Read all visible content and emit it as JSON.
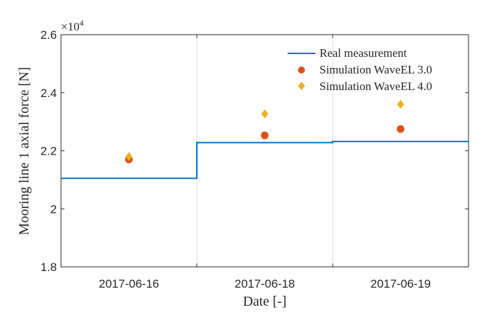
{
  "chart_data": {
    "type": "line",
    "title": "",
    "xlabel": "Date [-]",
    "ylabel": "Mooring line 1 axial force [N]",
    "y_exponent_label": "×10",
    "y_exponent_power": "4",
    "categories": [
      "2017-06-16",
      "2017-06-18",
      "2017-06-19"
    ],
    "ylim": [
      1.8,
      2.6
    ],
    "yticks": [
      1.8,
      2.0,
      2.2,
      2.4,
      2.6
    ],
    "ytick_labels": [
      "1.8",
      "2",
      "2.2",
      "2.4",
      "2.6"
    ],
    "grid": "vertical",
    "legend_position": "top-right",
    "series": [
      {
        "name": "Real measurement",
        "kind": "step",
        "color": "#0072BD",
        "segments": [
          {
            "from": "2017-06-16",
            "to": "2017-06-18",
            "value": 2.105
          },
          {
            "from": "2017-06-18",
            "to": "2017-06-19",
            "value": 2.228
          },
          {
            "from": "2017-06-19",
            "to": "end",
            "value": 2.232
          }
        ]
      },
      {
        "name": "Simulation WaveEL 3.0",
        "kind": "scatter",
        "marker": "circle",
        "color": "#D95319",
        "values": [
          2.17,
          2.253,
          2.275
        ]
      },
      {
        "name": "Simulation WaveEL 4.0",
        "kind": "scatter",
        "marker": "diamond",
        "color": "#EDB120",
        "values": [
          2.18,
          2.327,
          2.36
        ]
      }
    ]
  }
}
